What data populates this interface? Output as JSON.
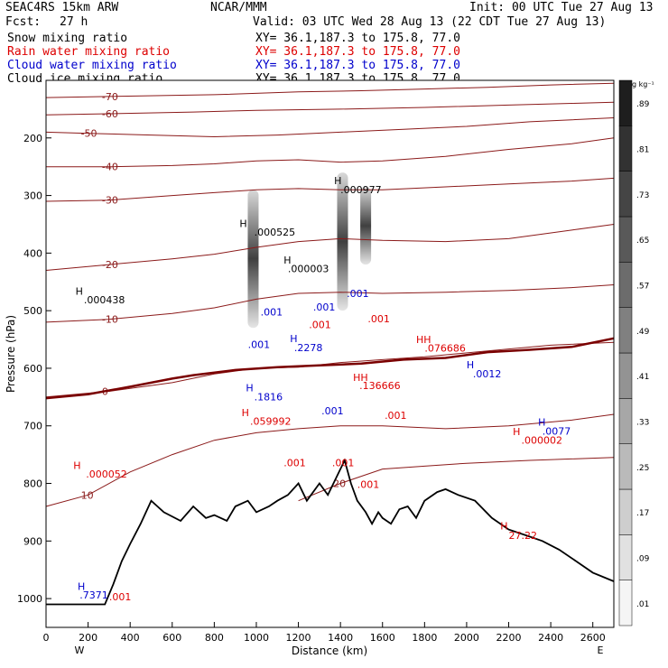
{
  "header": {
    "model": "SEAC4RS 15km ARW",
    "org": "NCAR/MMM",
    "init": "Init: 00 UTC Tue 27 Aug 13",
    "fcst_label": "Fcst:",
    "fcst_value": "27 h",
    "valid": "Valid: 03 UTC Wed 28 Aug 13 (22 CDT Tue 27 Aug 13)"
  },
  "fields": [
    {
      "label": "Snow mixing ratio",
      "xy": "XY=  36.1,187.3 to 175.8, 77.0",
      "color": "#000000"
    },
    {
      "label": "Rain water mixing ratio",
      "xy": "XY=  36.1,187.3 to 175.8, 77.0",
      "color": "#dd0000"
    },
    {
      "label": "Cloud water mixing ratio",
      "xy": "XY=  36.1,187.3 to 175.8, 77.0",
      "color": "#0000cc"
    },
    {
      "label": "Cloud ice mixing ratio",
      "xy": "XY=  36.1,187.3 to 175.8, 77.0",
      "color": "#000000"
    }
  ],
  "colorbar": {
    "unit": "g kg⁻¹",
    "labels": [
      ".01",
      ".09",
      ".17",
      ".25",
      ".33",
      ".41",
      ".49",
      ".57",
      ".65",
      ".73",
      ".81",
      ".89"
    ]
  },
  "chart_data": {
    "type": "cross-section",
    "xlabel": "Distance (km)",
    "ylabel": "Pressure (hPa)",
    "xlim": [
      0,
      2700
    ],
    "ylim": [
      1050,
      100
    ],
    "x_ticks": [
      0,
      200,
      400,
      600,
      800,
      1000,
      1200,
      1400,
      1600,
      1800,
      2000,
      2200,
      2400,
      2600
    ],
    "y_ticks": [
      200,
      300,
      400,
      500,
      600,
      700,
      800,
      900,
      1000
    ],
    "left_end": "W",
    "right_end": "E",
    "isotherms": [
      {
        "label": "-70",
        "points": [
          [
            0,
            130
          ],
          [
            300,
            128
          ],
          [
            800,
            125
          ],
          [
            1200,
            120
          ],
          [
            1500,
            118
          ],
          [
            1800,
            115
          ],
          [
            2100,
            112
          ],
          [
            2400,
            108
          ],
          [
            2700,
            105
          ]
        ]
      },
      {
        "label": "-60",
        "points": [
          [
            0,
            160
          ],
          [
            300,
            158
          ],
          [
            700,
            155
          ],
          [
            1000,
            152
          ],
          [
            1400,
            150
          ],
          [
            1800,
            147
          ],
          [
            2200,
            143
          ],
          [
            2500,
            140
          ],
          [
            2700,
            138
          ]
        ]
      },
      {
        "label": "-50",
        "points": [
          [
            0,
            190
          ],
          [
            200,
            192
          ],
          [
            500,
            195
          ],
          [
            800,
            198
          ],
          [
            1100,
            195
          ],
          [
            1400,
            190
          ],
          [
            1700,
            185
          ],
          [
            2000,
            180
          ],
          [
            2300,
            172
          ],
          [
            2700,
            165
          ]
        ]
      },
      {
        "label": "-40",
        "points": [
          [
            0,
            250
          ],
          [
            300,
            250
          ],
          [
            600,
            248
          ],
          [
            800,
            245
          ],
          [
            1000,
            240
          ],
          [
            1200,
            238
          ],
          [
            1400,
            242
          ],
          [
            1600,
            240
          ],
          [
            1900,
            232
          ],
          [
            2200,
            220
          ],
          [
            2500,
            210
          ],
          [
            2700,
            200
          ]
        ]
      },
      {
        "label": "-30",
        "points": [
          [
            0,
            310
          ],
          [
            300,
            308
          ],
          [
            600,
            300
          ],
          [
            800,
            295
          ],
          [
            1000,
            290
          ],
          [
            1200,
            288
          ],
          [
            1400,
            290
          ],
          [
            1600,
            290
          ],
          [
            1900,
            285
          ],
          [
            2200,
            280
          ],
          [
            2500,
            275
          ],
          [
            2700,
            270
          ]
        ]
      },
      {
        "label": "-20",
        "points": [
          [
            0,
            430
          ],
          [
            300,
            420
          ],
          [
            600,
            410
          ],
          [
            800,
            402
          ],
          [
            1000,
            390
          ],
          [
            1200,
            380
          ],
          [
            1400,
            375
          ],
          [
            1600,
            378
          ],
          [
            1900,
            380
          ],
          [
            2200,
            375
          ],
          [
            2500,
            360
          ],
          [
            2700,
            350
          ]
        ]
      },
      {
        "label": "-10",
        "points": [
          [
            0,
            520
          ],
          [
            300,
            515
          ],
          [
            600,
            505
          ],
          [
            800,
            495
          ],
          [
            1000,
            480
          ],
          [
            1200,
            470
          ],
          [
            1400,
            468
          ],
          [
            1600,
            470
          ],
          [
            1900,
            468
          ],
          [
            2200,
            465
          ],
          [
            2500,
            460
          ],
          [
            2700,
            455
          ]
        ]
      },
      {
        "label": "0",
        "points": [
          [
            0,
            650
          ],
          [
            300,
            640
          ],
          [
            600,
            625
          ],
          [
            800,
            610
          ],
          [
            1000,
            600
          ],
          [
            1200,
            598
          ],
          [
            1400,
            590
          ],
          [
            1600,
            585
          ],
          [
            1800,
            580
          ],
          [
            2100,
            570
          ],
          [
            2400,
            560
          ],
          [
            2700,
            555
          ]
        ]
      },
      {
        "label": "10",
        "points": [
          [
            0,
            840
          ],
          [
            200,
            820
          ],
          [
            400,
            780
          ],
          [
            600,
            750
          ],
          [
            800,
            725
          ],
          [
            1000,
            712
          ],
          [
            1200,
            705
          ],
          [
            1400,
            700
          ],
          [
            1600,
            700
          ],
          [
            1900,
            705
          ],
          [
            2200,
            700
          ],
          [
            2500,
            690
          ],
          [
            2700,
            680
          ]
        ]
      },
      {
        "label": "20",
        "points": [
          [
            1200,
            830
          ],
          [
            1400,
            800
          ],
          [
            1600,
            775
          ],
          [
            1800,
            770
          ],
          [
            2000,
            765
          ],
          [
            2300,
            760
          ],
          [
            2700,
            755
          ]
        ]
      }
    ],
    "freezing_level": [
      [
        0,
        652
      ],
      [
        200,
        645
      ],
      [
        400,
        632
      ],
      [
        600,
        618
      ],
      [
        700,
        612
      ],
      [
        900,
        603
      ],
      [
        1100,
        598
      ],
      [
        1300,
        595
      ],
      [
        1500,
        592
      ],
      [
        1700,
        585
      ],
      [
        1900,
        582
      ],
      [
        2100,
        572
      ],
      [
        2300,
        568
      ],
      [
        2500,
        563
      ],
      [
        2700,
        548
      ]
    ],
    "terrain": [
      [
        0,
        1010
      ],
      [
        280,
        1010
      ],
      [
        320,
        975
      ],
      [
        360,
        935
      ],
      [
        400,
        905
      ],
      [
        450,
        870
      ],
      [
        500,
        830
      ],
      [
        560,
        850
      ],
      [
        640,
        865
      ],
      [
        700,
        840
      ],
      [
        760,
        860
      ],
      [
        800,
        855
      ],
      [
        860,
        865
      ],
      [
        900,
        840
      ],
      [
        960,
        830
      ],
      [
        1000,
        850
      ],
      [
        1060,
        840
      ],
      [
        1100,
        830
      ],
      [
        1150,
        820
      ],
      [
        1200,
        800
      ],
      [
        1240,
        830
      ],
      [
        1300,
        800
      ],
      [
        1340,
        820
      ],
      [
        1380,
        790
      ],
      [
        1420,
        760
      ],
      [
        1450,
        800
      ],
      [
        1480,
        830
      ],
      [
        1520,
        850
      ],
      [
        1550,
        870
      ],
      [
        1580,
        850
      ],
      [
        1600,
        860
      ],
      [
        1640,
        870
      ],
      [
        1680,
        845
      ],
      [
        1720,
        840
      ],
      [
        1760,
        860
      ],
      [
        1800,
        830
      ],
      [
        1860,
        815
      ],
      [
        1900,
        810
      ],
      [
        1960,
        820
      ],
      [
        2040,
        830
      ],
      [
        2120,
        860
      ],
      [
        2200,
        880
      ],
      [
        2280,
        890
      ],
      [
        2360,
        900
      ],
      [
        2440,
        915
      ],
      [
        2520,
        935
      ],
      [
        2600,
        955
      ],
      [
        2700,
        970
      ]
    ],
    "snow_columns": [
      {
        "x": 985,
        "p_top": 290,
        "p_bottom": 530,
        "max": 0.57
      },
      {
        "x": 1410,
        "p_top": 260,
        "p_bottom": 500,
        "max": 0.41
      },
      {
        "x": 1520,
        "p_top": 285,
        "p_bottom": 420,
        "max": 0.49
      }
    ],
    "labels": [
      {
        "text": "H",
        "x": 1370,
        "p": 280,
        "color": "#000000"
      },
      {
        "text": ".000977",
        "x": 1400,
        "p": 296,
        "color": "#000000"
      },
      {
        "text": "H",
        "x": 920,
        "p": 355,
        "color": "#000000"
      },
      {
        "text": ".000525",
        "x": 990,
        "p": 370,
        "color": "#000000"
      },
      {
        "text": "H",
        "x": 1130,
        "p": 418,
        "color": "#000000"
      },
      {
        "text": ".000003",
        "x": 1150,
        "p": 433,
        "color": "#000000"
      },
      {
        "text": "H",
        "x": 140,
        "p": 472,
        "color": "#000000"
      },
      {
        "text": ".000438",
        "x": 180,
        "p": 487,
        "color": "#000000"
      },
      {
        "text": ".001",
        "x": 1020,
        "p": 508,
        "color": "#0000cc"
      },
      {
        "text": ".001",
        "x": 1270,
        "p": 500,
        "color": "#0000cc"
      },
      {
        "text": ".001",
        "x": 1430,
        "p": 476,
        "color": "#0000cc"
      },
      {
        "text": ".001",
        "x": 1530,
        "p": 520,
        "color": "#dd0000"
      },
      {
        "text": ".001",
        "x": 1250,
        "p": 530,
        "color": "#dd0000"
      },
      {
        "text": ".001",
        "x": 960,
        "p": 565,
        "color": "#0000cc"
      },
      {
        "text": "H",
        "x": 1160,
        "p": 555,
        "color": "#0000cc"
      },
      {
        "text": ".2278",
        "x": 1180,
        "p": 570,
        "color": "#0000cc"
      },
      {
        "text": "HH",
        "x": 1760,
        "p": 556,
        "color": "#dd0000"
      },
      {
        "text": ".076686",
        "x": 1800,
        "p": 571,
        "color": "#dd0000"
      },
      {
        "text": "H",
        "x": 2000,
        "p": 600,
        "color": "#0000cc"
      },
      {
        "text": ".0012",
        "x": 2030,
        "p": 616,
        "color": "#0000cc"
      },
      {
        "text": "HH",
        "x": 1460,
        "p": 622,
        "color": "#dd0000"
      },
      {
        "text": ".136666",
        "x": 1490,
        "p": 636,
        "color": "#dd0000"
      },
      {
        "text": "H",
        "x": 950,
        "p": 640,
        "color": "#0000cc"
      },
      {
        "text": ".1816",
        "x": 990,
        "p": 656,
        "color": "#0000cc"
      },
      {
        "text": ".001",
        "x": 1310,
        "p": 680,
        "color": "#0000cc"
      },
      {
        "text": ".001",
        "x": 1610,
        "p": 688,
        "color": "#dd0000"
      },
      {
        "text": "H",
        "x": 930,
        "p": 683,
        "color": "#dd0000"
      },
      {
        "text": ".059992",
        "x": 970,
        "p": 698,
        "color": "#dd0000"
      },
      {
        "text": "H",
        "x": 2340,
        "p": 700,
        "color": "#0000cc"
      },
      {
        "text": ".0077",
        "x": 2360,
        "p": 715,
        "color": "#0000cc"
      },
      {
        "text": "H",
        "x": 2220,
        "p": 716,
        "color": "#dd0000"
      },
      {
        "text": ".000002",
        "x": 2260,
        "p": 731,
        "color": "#dd0000"
      },
      {
        "text": "H",
        "x": 130,
        "p": 775,
        "color": "#dd0000"
      },
      {
        "text": ".000052",
        "x": 190,
        "p": 790,
        "color": "#dd0000"
      },
      {
        "text": ".001",
        "x": 1130,
        "p": 770,
        "color": "#dd0000"
      },
      {
        "text": ".001",
        "x": 1360,
        "p": 770,
        "color": "#dd0000"
      },
      {
        "text": ".001",
        "x": 1480,
        "p": 808,
        "color": "#dd0000"
      },
      {
        "text": "H",
        "x": 2160,
        "p": 880,
        "color": "#dd0000"
      },
      {
        "text": "27.22",
        "x": 2200,
        "p": 896,
        "color": "#dd0000"
      },
      {
        "text": "H",
        "x": 150,
        "p": 985,
        "color": "#0000cc"
      },
      {
        "text": ".7371",
        "x": 160,
        "p": 1000,
        "color": "#0000cc"
      },
      {
        "text": ".001",
        "x": 300,
        "p": 1003,
        "color": "#dd0000"
      }
    ]
  }
}
